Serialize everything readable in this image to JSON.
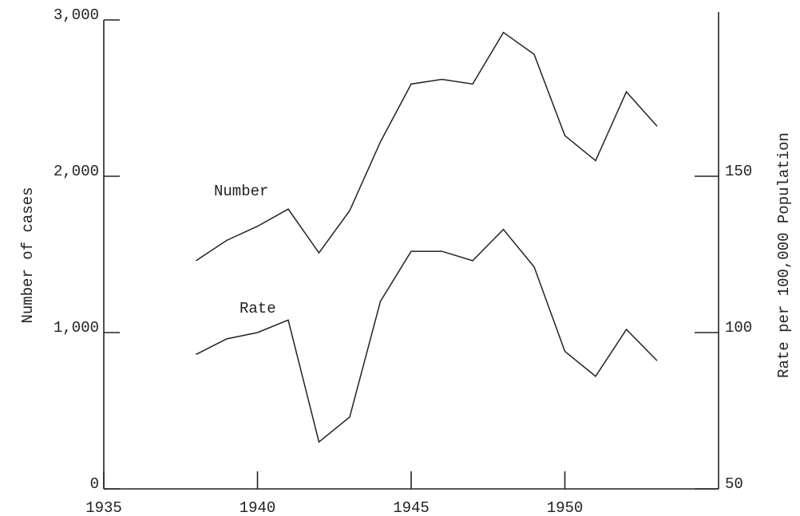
{
  "chart_data": {
    "type": "line",
    "x": [
      1938,
      1939,
      1940,
      1941,
      1942,
      1943,
      1944,
      1945,
      1946,
      1947,
      1948,
      1949,
      1950,
      1951,
      1952,
      1953
    ],
    "series": [
      {
        "name": "Number",
        "color": "#222222",
        "values": [
          1460,
          1590,
          1680,
          1790,
          1510,
          1780,
          2220,
          2590,
          2620,
          2590,
          2920,
          2780,
          2260,
          2100,
          2540,
          2320
        ]
      },
      {
        "name": "Rate",
        "color": "#222222",
        "axis": "y2",
        "values": [
          93,
          98,
          100,
          104,
          65,
          73,
          110,
          126,
          126,
          123,
          133,
          121,
          94,
          86,
          101,
          91
        ]
      }
    ],
    "ylabel": "Number of cases",
    "y2label": "Rate per 100,000 Population",
    "xlim": [
      1935,
      1955
    ],
    "xticks": [
      1935,
      1940,
      1945,
      1950
    ],
    "ylim": [
      0,
      3000
    ],
    "yticks": [
      0,
      {
        "value": 1000,
        "label": "1,000"
      },
      {
        "value": 2000,
        "label": "2,000"
      },
      {
        "value": 3000,
        "label": "3,000"
      }
    ],
    "y2lim": [
      50,
      200
    ],
    "y2ticks": [
      50,
      100,
      150
    ]
  }
}
